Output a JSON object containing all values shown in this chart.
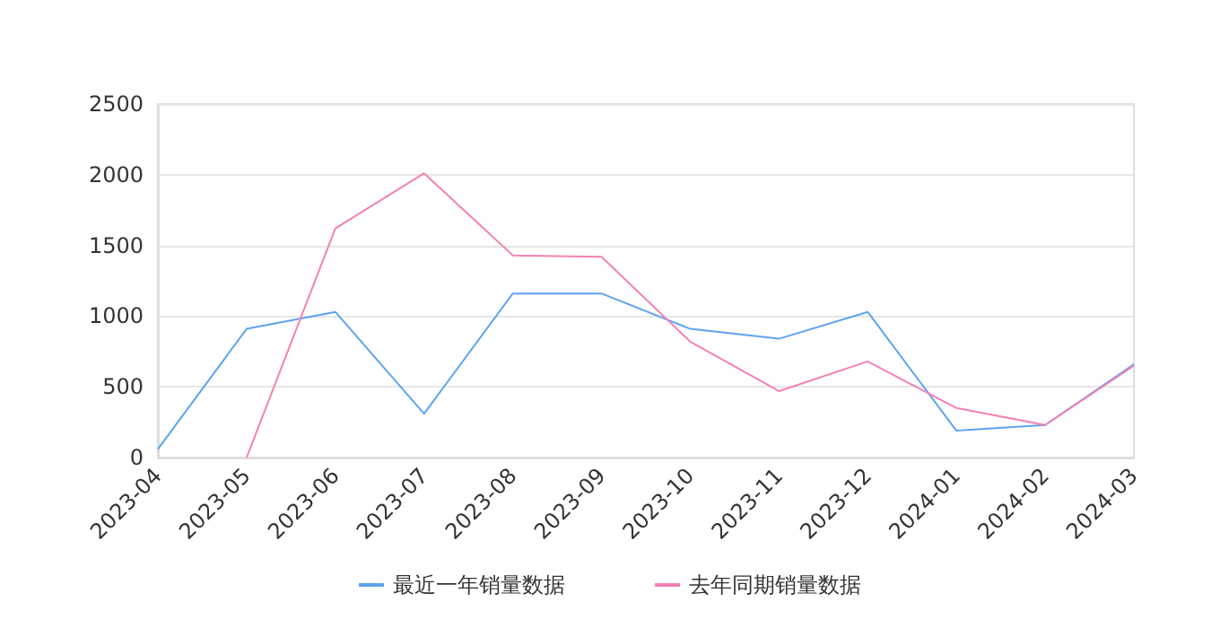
{
  "chart_data": {
    "type": "line",
    "categories": [
      "2023-04",
      "2023-05",
      "2023-06",
      "2023-07",
      "2023-08",
      "2023-09",
      "2023-10",
      "2023-11",
      "2023-12",
      "2024-01",
      "2024-02",
      "2024-03"
    ],
    "series": [
      {
        "name": "最近一年销量数据",
        "color": "#5ea3f0",
        "values": [
          60,
          910,
          1030,
          310,
          1160,
          1160,
          910,
          840,
          1030,
          190,
          230,
          660
        ]
      },
      {
        "name": "去年同期销量数据",
        "color": "#f580b5",
        "values": [
          null,
          0,
          1620,
          2010,
          1430,
          1420,
          820,
          470,
          680,
          350,
          230,
          650
        ]
      }
    ],
    "ylim": [
      0,
      2500
    ],
    "yticks": [
      0,
      500,
      1000,
      1500,
      2000,
      2500
    ],
    "grid": "y",
    "legend": "bottom",
    "marker": "none",
    "line_style": "solid"
  }
}
